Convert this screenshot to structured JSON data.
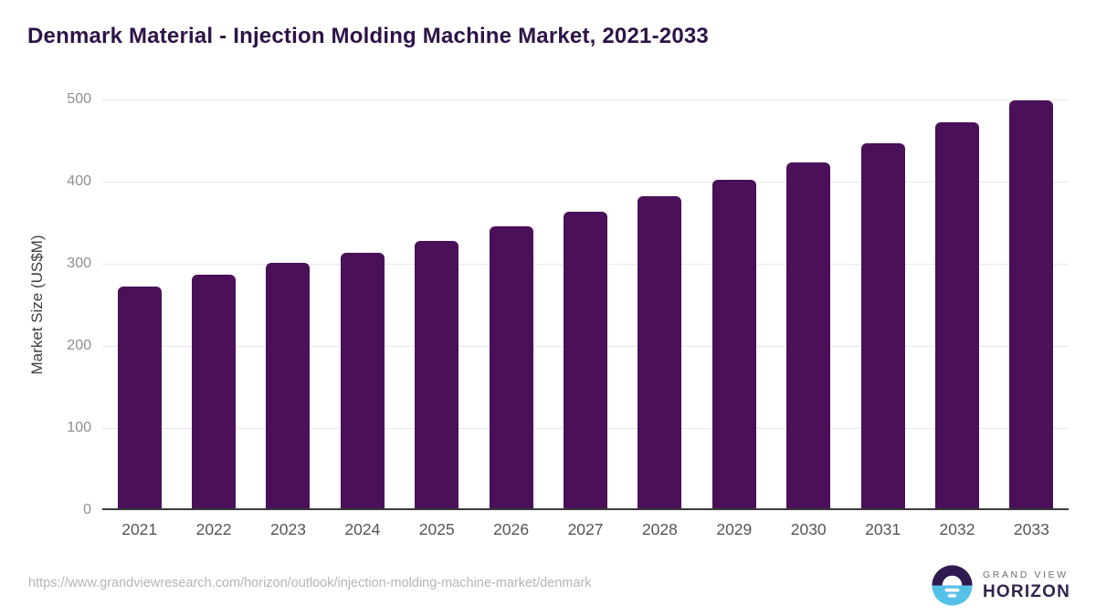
{
  "page": {
    "source_url": "https://www.grandviewresearch.com/horizon/outlook/injection-molding-machine-market/denmark"
  },
  "chart_data": {
    "type": "bar",
    "title": "Denmark Material - Injection Molding Machine Market, 2021-2033",
    "categories": [
      "2021",
      "2022",
      "2023",
      "2024",
      "2025",
      "2026",
      "2027",
      "2028",
      "2029",
      "2030",
      "2031",
      "2032",
      "2033"
    ],
    "values": [
      270,
      285,
      299,
      311,
      326,
      343,
      361,
      380,
      400,
      421,
      445,
      470,
      497
    ],
    "xlabel": "",
    "ylabel": "Market Size (US$M)",
    "ylim": [
      0,
      500
    ],
    "yticks": [
      0,
      100,
      200,
      300,
      400,
      500
    ],
    "grid": "horizontal",
    "legend": "none",
    "bar_color": "#4a1058"
  },
  "logo": {
    "line1": "GRAND VIEW",
    "line2": "HORIZON"
  },
  "colors": {
    "title_text": "#2d1446",
    "bar": "#4a1058",
    "gridline": "#e8e8e8",
    "axis_line": "#3a3a3a",
    "y_tick_text": "#8e8e8e",
    "x_tick_text": "#555555",
    "url_text": "#b5b5b5",
    "logo_dark_purple": "#2e1a4e",
    "logo_light_blue": "#56c1e8",
    "logo_grand_view_text": "#6f6b76",
    "logo_horizon_text": "#32254f"
  }
}
